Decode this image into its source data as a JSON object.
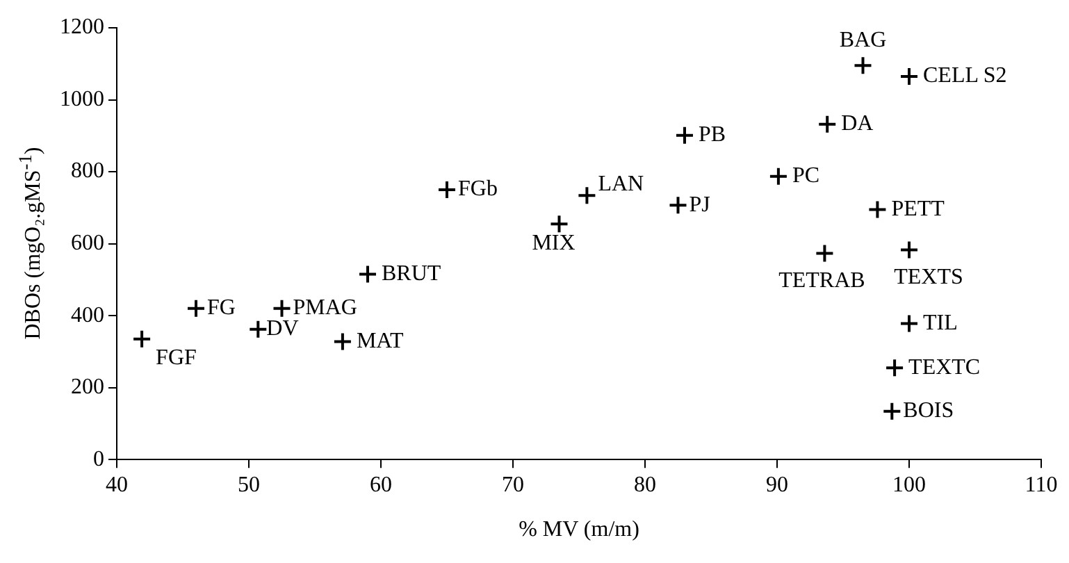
{
  "chart_data": {
    "type": "scatter",
    "xlabel": "% MV (m/m)",
    "ylabel": "DBOs (mgO₂.gMS$^{-1}$)",
    "x": [
      41.9,
      46,
      50.7,
      52.5,
      57.1,
      59,
      65,
      73.5,
      75.6,
      82.5,
      83,
      90.1,
      93.8,
      93.6,
      96.5,
      100,
      97.6,
      100,
      100,
      98.9,
      98.7
    ],
    "values": [
      335,
      420,
      362,
      420,
      328,
      515,
      750,
      655,
      734,
      707,
      901,
      787,
      932,
      573,
      1095,
      1065,
      695,
      583,
      378,
      255,
      134
    ],
    "color": "#000000",
    "marker": "cross",
    "grid": false,
    "xlim": [
      40,
      110
    ],
    "xticks": [
      40,
      50,
      60,
      70,
      80,
      90,
      100,
      110
    ],
    "ylim": [
      0,
      1200
    ],
    "yticks": [
      0,
      200,
      400,
      600,
      800,
      1000,
      1200
    ],
    "annotations": [
      {
        "text": "FGF",
        "x": 41.9,
        "y": 335
      },
      {
        "text": "FG",
        "x": 46,
        "y": 420
      },
      {
        "text": "DV",
        "x": 50.7,
        "y": 362
      },
      {
        "text": "PMAG",
        "x": 52.5,
        "y": 420
      },
      {
        "text": "MAT",
        "x": 57.1,
        "y": 328
      },
      {
        "text": "BRUT",
        "x": 59,
        "y": 515
      },
      {
        "text": "FGb",
        "x": 65,
        "y": 750
      },
      {
        "text": "MIX",
        "x": 73.5,
        "y": 655
      },
      {
        "text": "LAN",
        "x": 75.6,
        "y": 734
      },
      {
        "text": "PJ",
        "x": 82.5,
        "y": 707
      },
      {
        "text": "PB",
        "x": 83,
        "y": 901
      },
      {
        "text": "PC",
        "x": 90.1,
        "y": 787
      },
      {
        "text": "DA",
        "x": 93.8,
        "y": 932
      },
      {
        "text": "TETRAB",
        "x": 93.6,
        "y": 573
      },
      {
        "text": "BAG",
        "x": 96.5,
        "y": 1095
      },
      {
        "text": "CELL S2",
        "x": 100,
        "y": 1065
      },
      {
        "text": "PETT",
        "x": 97.6,
        "y": 695
      },
      {
        "text": "TEXTS",
        "x": 100,
        "y": 583
      },
      {
        "text": "TIL",
        "x": 100,
        "y": 378
      },
      {
        "text": "TEXTC",
        "x": 98.9,
        "y": 255
      },
      {
        "text": "BOIS",
        "x": 98.7,
        "y": 134
      }
    ]
  }
}
